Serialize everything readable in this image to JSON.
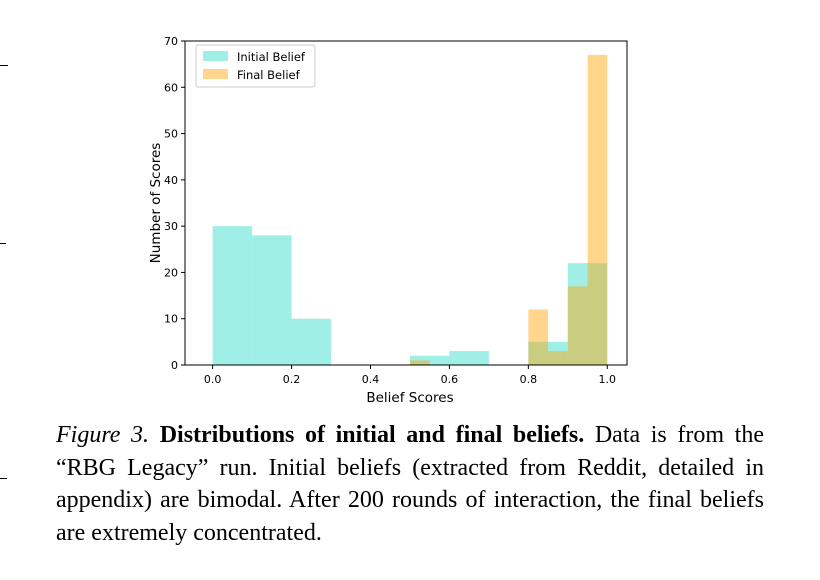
{
  "chart_data": {
    "type": "bar",
    "xlabel": "Belief Scores",
    "ylabel": "Number of Scores",
    "xlim": [
      -0.07,
      1.05
    ],
    "ylim": [
      0,
      70
    ],
    "xticks": [
      "0.0",
      "0.2",
      "0.4",
      "0.6",
      "0.8",
      "1.0"
    ],
    "yticks": [
      "0",
      "10",
      "20",
      "30",
      "40",
      "50",
      "60",
      "70"
    ],
    "bin_edges": [
      0.0,
      0.1,
      0.2,
      0.3,
      0.4,
      0.5,
      0.55,
      0.6,
      0.7,
      0.8,
      0.85,
      0.9,
      0.95,
      1.0
    ],
    "legend_position": "top-left",
    "grid": false,
    "series": [
      {
        "name": "Initial Belief",
        "color": "#40e0d0",
        "bins": [
          {
            "x0": 0.0,
            "x1": 0.1,
            "count": 30
          },
          {
            "x0": 0.1,
            "x1": 0.2,
            "count": 28
          },
          {
            "x0": 0.2,
            "x1": 0.3,
            "count": 10
          },
          {
            "x0": 0.5,
            "x1": 0.6,
            "count": 2
          },
          {
            "x0": 0.6,
            "x1": 0.7,
            "count": 3
          },
          {
            "x0": 0.8,
            "x1": 0.85,
            "count": 5
          },
          {
            "x0": 0.85,
            "x1": 0.9,
            "count": 5
          },
          {
            "x0": 0.9,
            "x1": 0.95,
            "count": 22
          },
          {
            "x0": 0.95,
            "x1": 1.0,
            "count": 22
          }
        ]
      },
      {
        "name": "Final Belief",
        "color": "#ffa500",
        "bins": [
          {
            "x0": 0.5,
            "x1": 0.55,
            "count": 1
          },
          {
            "x0": 0.8,
            "x1": 0.85,
            "count": 12
          },
          {
            "x0": 0.85,
            "x1": 0.9,
            "count": 3
          },
          {
            "x0": 0.9,
            "x1": 0.95,
            "count": 17
          },
          {
            "x0": 0.95,
            "x1": 1.0,
            "count": 67
          }
        ]
      }
    ]
  },
  "caption": {
    "label": "Figure 3.",
    "title": "Distributions of initial and final beliefs.",
    "text": "Data is from the “RBG Legacy” run.  Initial beliefs (extracted from Reddit, detailed in appendix) are bimodal. After 200 rounds of interaction, the final beliefs are extremely concentrated."
  }
}
